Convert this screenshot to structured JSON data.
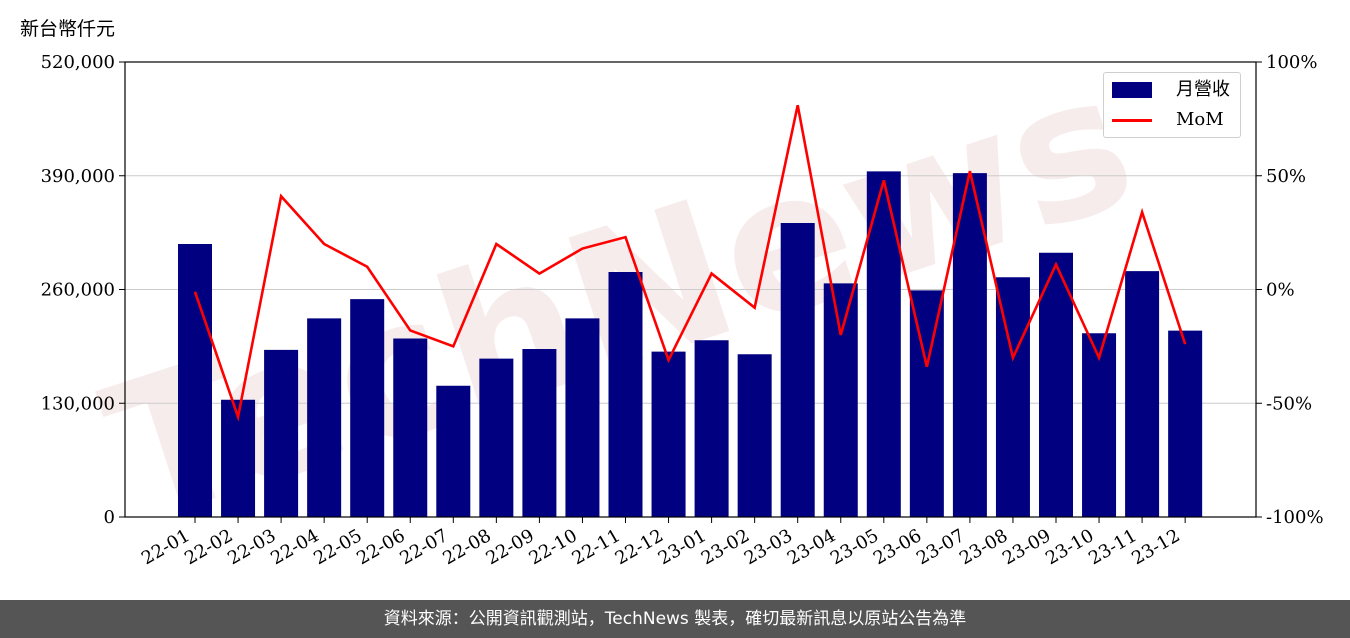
{
  "chart_data": {
    "type": "bar",
    "y_unit_label": "新台幣仟元",
    "categories": [
      "22-01",
      "22-02",
      "22-03",
      "22-04",
      "22-05",
      "22-06",
      "22-07",
      "22-08",
      "22-09",
      "22-10",
      "22-11",
      "22-12",
      "23-01",
      "23-02",
      "23-03",
      "23-04",
      "23-05",
      "23-06",
      "23-07",
      "23-08",
      "23-09",
      "23-10",
      "23-11",
      "23-12"
    ],
    "series": [
      {
        "name": "月營收",
        "type": "bar",
        "axis": "left",
        "color": "#000080",
        "values": [
          312000,
          134000,
          191000,
          227000,
          249000,
          204000,
          150000,
          181000,
          192000,
          227000,
          280000,
          189000,
          202000,
          186000,
          336000,
          267000,
          395000,
          259000,
          393000,
          274000,
          302000,
          210000,
          281000,
          213000
        ]
      },
      {
        "name": "MoM",
        "type": "line",
        "axis": "right",
        "color": "#ff0000",
        "values": [
          -1,
          -56,
          41,
          20,
          10,
          -18,
          -25,
          20,
          7,
          18,
          23,
          -31,
          7,
          -8,
          81,
          -20,
          48,
          -34,
          52,
          -30,
          11,
          -30,
          34,
          -24
        ]
      }
    ],
    "y_left": {
      "ylim": [
        0,
        520000
      ],
      "ticks": [
        "0",
        "130,000",
        "260,000",
        "390,000",
        "520,000"
      ]
    },
    "y_right": {
      "ylim": [
        -100,
        100
      ],
      "ticks": [
        "-100%",
        "-50%",
        "0%",
        "50%",
        "100%"
      ]
    },
    "grid": "horizontal",
    "legend_position": "top-right",
    "watermark": "TechNews"
  },
  "footer": {
    "source_text": "資料來源：公開資訊觀測站，TechNews 製表，確切最新訊息以原站公告為準"
  }
}
